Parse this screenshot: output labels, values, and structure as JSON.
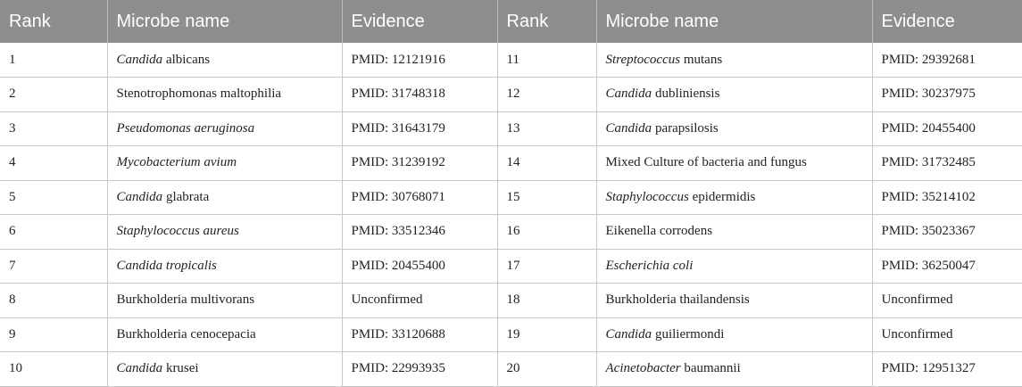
{
  "table": {
    "headers": [
      "Rank",
      "Microbe name",
      "Evidence",
      "Rank",
      "Microbe name",
      "Evidence"
    ],
    "rows": [
      {
        "left": {
          "rank": "1",
          "name_italic": "Candida",
          "name_rest": " albicans",
          "evidence": "PMID: 12121916"
        },
        "right": {
          "rank": "11",
          "name_italic": "Streptococcus",
          "name_rest": " mutans",
          "evidence": "PMID: 29392681"
        }
      },
      {
        "left": {
          "rank": "2",
          "name_italic": "",
          "name_rest": "Stenotrophomonas maltophilia",
          "evidence": "PMID: 31748318"
        },
        "right": {
          "rank": "12",
          "name_italic": "Candida",
          "name_rest": " dubliniensis",
          "evidence": "PMID: 30237975"
        }
      },
      {
        "left": {
          "rank": "3",
          "name_italic": "Pseudomonas aeruginosa",
          "name_rest": "",
          "evidence": "PMID: 31643179"
        },
        "right": {
          "rank": "13",
          "name_italic": "Candida",
          "name_rest": " parapsilosis",
          "evidence": "PMID: 20455400"
        }
      },
      {
        "left": {
          "rank": "4",
          "name_italic": "Mycobacterium avium",
          "name_rest": "",
          "evidence": "PMID: 31239192"
        },
        "right": {
          "rank": "14",
          "name_italic": "",
          "name_rest": "Mixed Culture of bacteria and fungus",
          "evidence": "PMID: 31732485"
        }
      },
      {
        "left": {
          "rank": "5",
          "name_italic": "Candida",
          "name_rest": " glabrata",
          "evidence": "PMID: 30768071"
        },
        "right": {
          "rank": "15",
          "name_italic": "Staphylococcus",
          "name_rest": " epidermidis",
          "evidence": "PMID: 35214102"
        }
      },
      {
        "left": {
          "rank": "6",
          "name_italic": "Staphylococcus aureus",
          "name_rest": "",
          "evidence": "PMID: 33512346"
        },
        "right": {
          "rank": "16",
          "name_italic": "",
          "name_rest": "Eikenella corrodens",
          "evidence": "PMID: 35023367"
        }
      },
      {
        "left": {
          "rank": "7",
          "name_italic": "Candida tropicalis",
          "name_rest": "",
          "evidence": "PMID: 20455400"
        },
        "right": {
          "rank": "17",
          "name_italic": "Escherichia coli",
          "name_rest": "",
          "evidence": "PMID: 36250047"
        }
      },
      {
        "left": {
          "rank": "8",
          "name_italic": "",
          "name_rest": "Burkholderia multivorans",
          "evidence": "Unconfirmed"
        },
        "right": {
          "rank": "18",
          "name_italic": "",
          "name_rest": "Burkholderia thailandensis",
          "evidence": "Unconfirmed"
        }
      },
      {
        "left": {
          "rank": "9",
          "name_italic": "",
          "name_rest": "Burkholderia cenocepacia",
          "evidence": "PMID: 33120688"
        },
        "right": {
          "rank": "19",
          "name_italic": "Candida",
          "name_rest": " guiliermondi",
          "evidence": "Unconfirmed"
        }
      },
      {
        "left": {
          "rank": "10",
          "name_italic": "Candida",
          "name_rest": " krusei",
          "evidence": "PMID: 22993935"
        },
        "right": {
          "rank": "20",
          "name_italic": "Acinetobacter",
          "name_rest": " baumannii",
          "evidence": "PMID: 12951327"
        }
      }
    ]
  }
}
